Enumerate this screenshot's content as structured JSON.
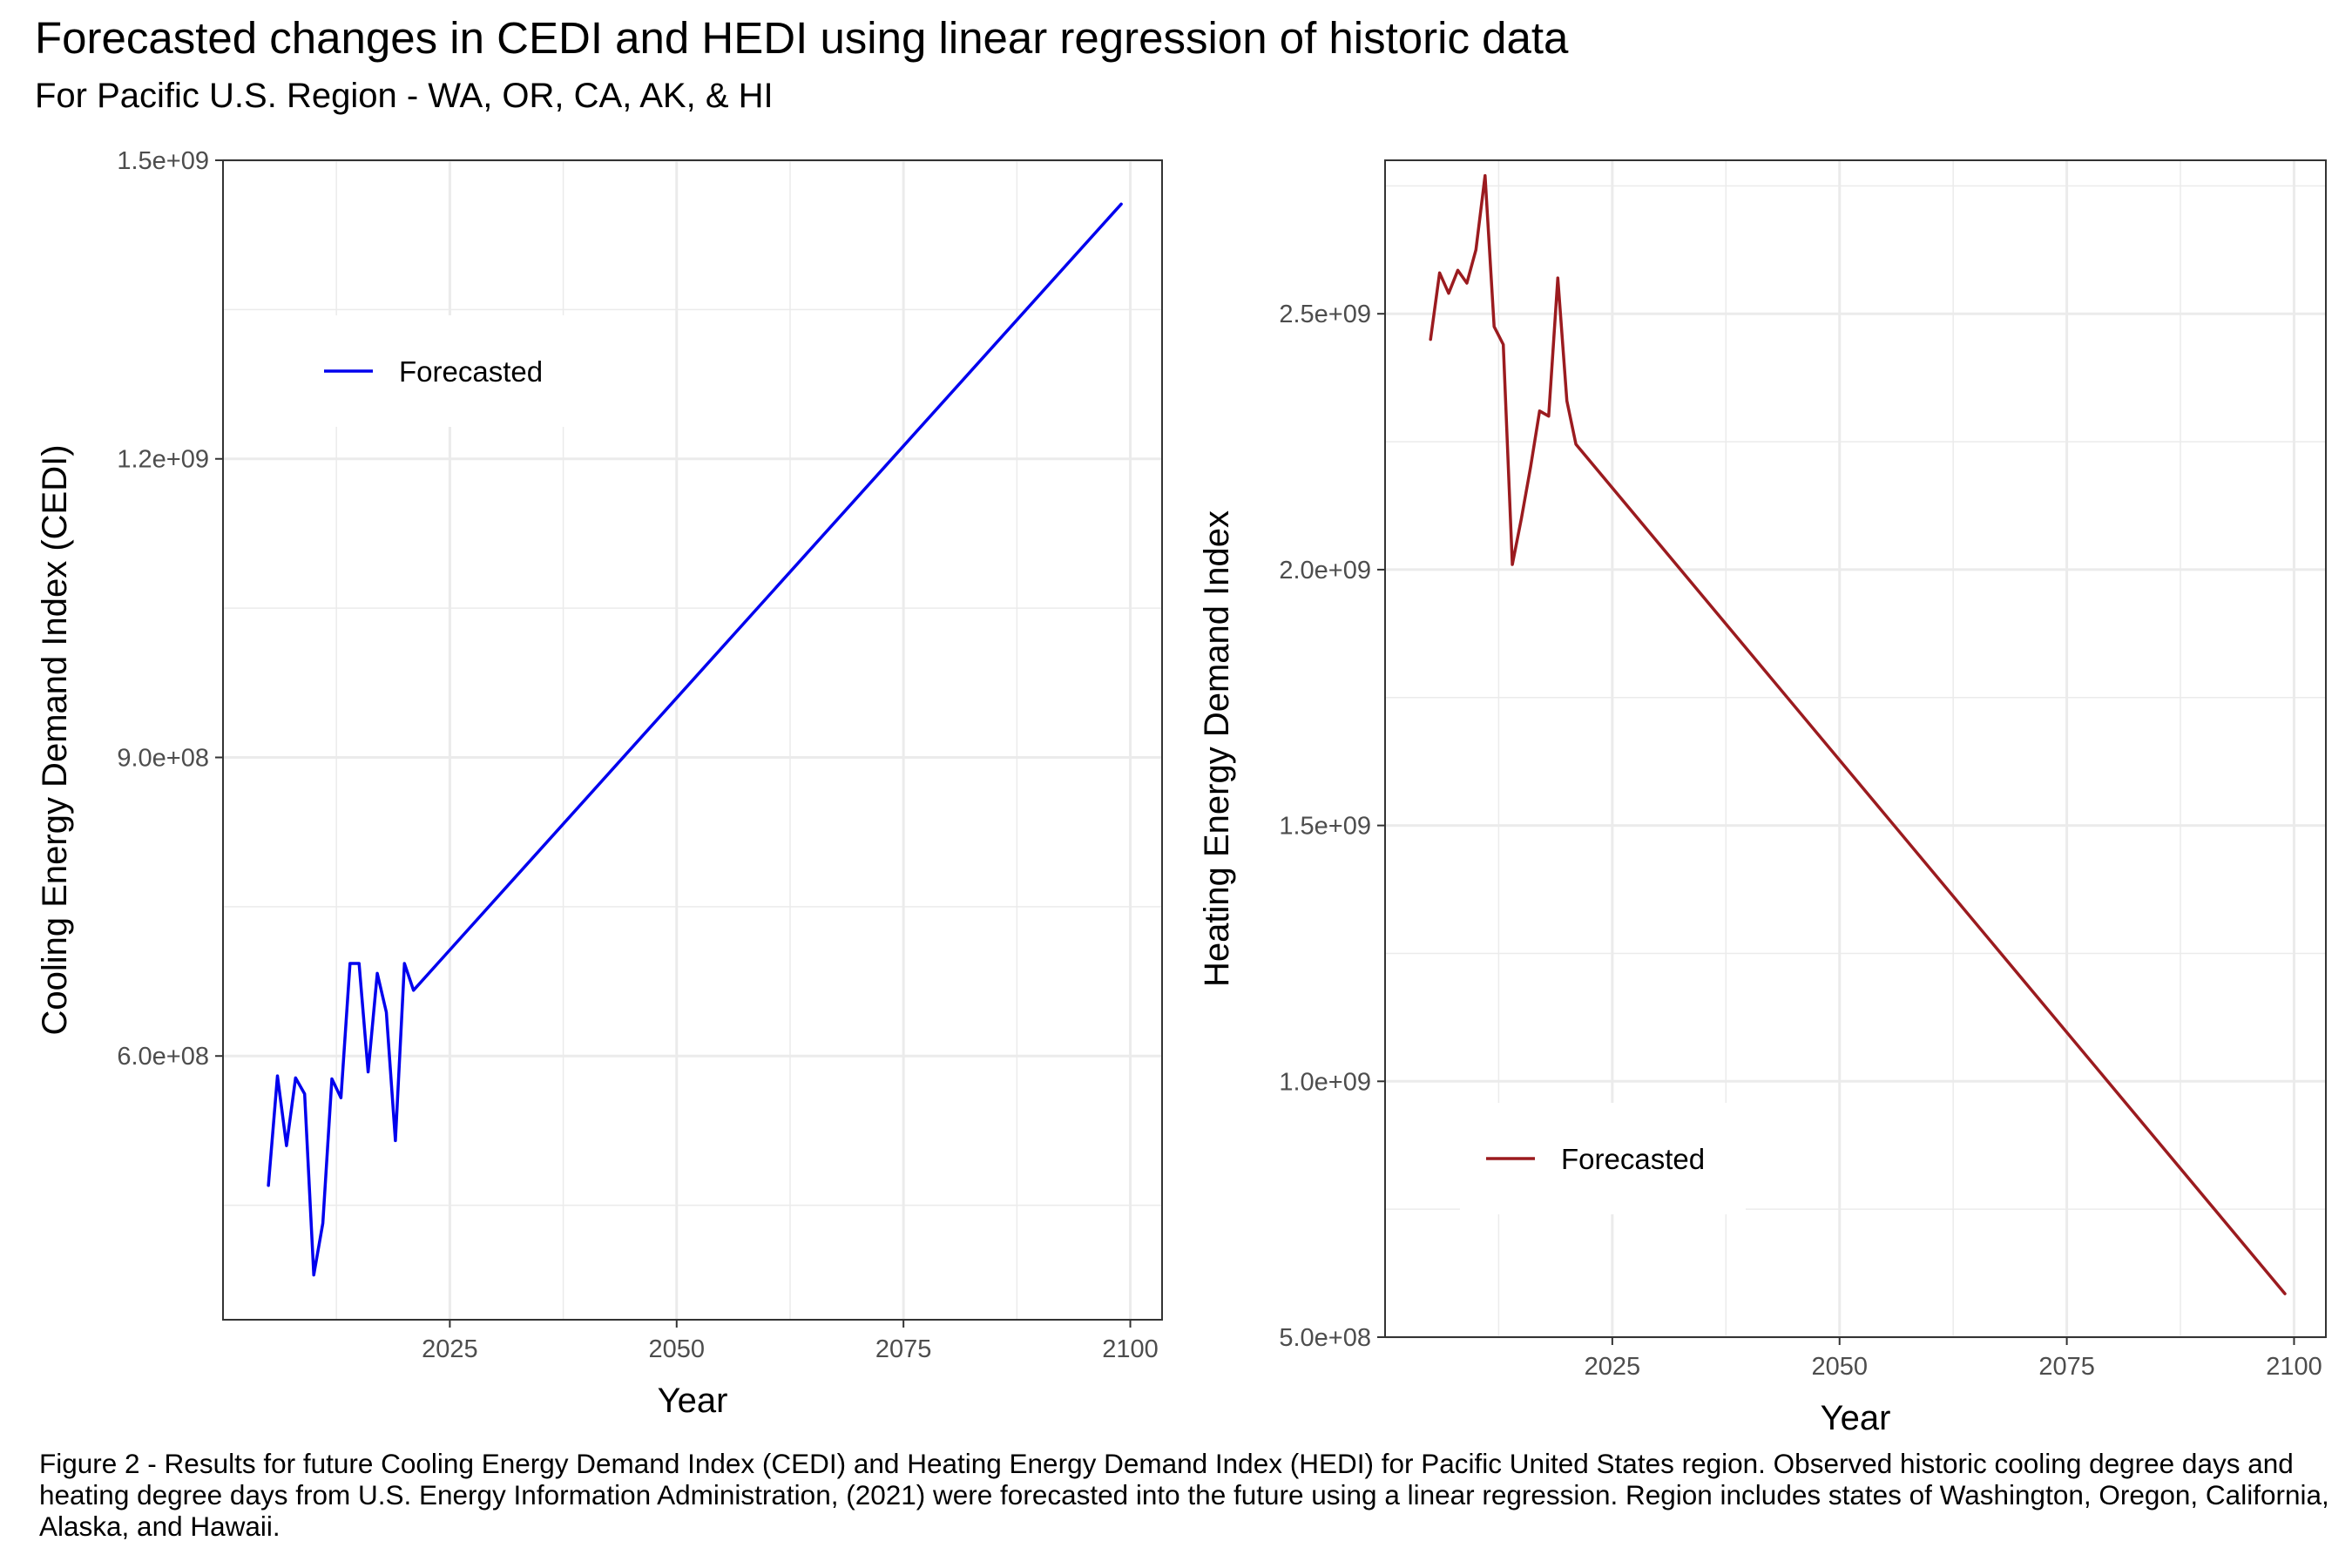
{
  "figure": {
    "title": "Forecasted changes in CEDI and HEDI using linear regression of historic data",
    "subtitle": "For Pacific U.S. Region - WA, OR, CA, AK, & HI",
    "caption": "Figure 2 - Results for future Cooling Energy Demand Index (CEDI) and Heating Energy Demand Index (HEDI) for Pacific United States region. Observed historic cooling degree days and heating degree days from U.S. Energy Information Administration, (2021) were forecasted into the future using a linear regression. Region includes states of Washington, Oregon, California, Alaska, and Hawaii."
  },
  "chart_data": [
    {
      "type": "line",
      "xlabel": "Year",
      "ylabel": "Cooling Energy Demand Index (CEDI)",
      "xlim": [
        2000,
        2103.5
      ],
      "ylim": [
        335000000,
        1500000000
      ],
      "x_ticks": [
        2025,
        2050,
        2075,
        2100
      ],
      "x_tick_labels": [
        "2025",
        "2050",
        "2075",
        "2100"
      ],
      "y_ticks": [
        600000000,
        900000000,
        1200000000,
        1500000000
      ],
      "y_tick_labels": [
        "6.0e+08",
        "9.0e+08",
        "1.2e+09",
        "1.5e+09"
      ],
      "grid": true,
      "legend": {
        "position": "top-left",
        "entries": [
          "Forecasted"
        ]
      },
      "series": [
        {
          "name": "Forecasted",
          "color": "#0000ee",
          "x": [
            2005,
            2006,
            2007,
            2008,
            2009,
            2010,
            2011,
            2012,
            2013,
            2014,
            2015,
            2016,
            2017,
            2018,
            2019,
            2020,
            2021,
            2099
          ],
          "y": [
            470000000,
            580000000,
            510000000,
            578000000,
            562000000,
            380000000,
            432000000,
            577000000,
            558000000,
            693000000,
            693000000,
            584000000,
            683000000,
            644000000,
            515000000,
            693000000,
            666000000,
            1456000000
          ]
        }
      ]
    },
    {
      "type": "line",
      "xlabel": "Year",
      "ylabel": "Heating Energy Demand Index",
      "xlim": [
        2000,
        2103.5
      ],
      "ylim": [
        500000000,
        2800000000
      ],
      "x_ticks": [
        2025,
        2050,
        2075,
        2100
      ],
      "x_tick_labels": [
        "2025",
        "2050",
        "2075",
        "2100"
      ],
      "y_ticks": [
        500000000,
        1000000000,
        1500000000,
        2000000000,
        2500000000
      ],
      "y_tick_labels": [
        "5.0e+08",
        "1.0e+09",
        "1.5e+09",
        "2.0e+09",
        "2.5e+09"
      ],
      "grid": true,
      "legend": {
        "position": "bottom-left",
        "entries": [
          "Forecasted"
        ]
      },
      "series": [
        {
          "name": "Forecasted",
          "color": "#9b1b1f",
          "x": [
            2005,
            2006,
            2007,
            2008,
            2009,
            2010,
            2011,
            2012,
            2013,
            2014,
            2015,
            2016,
            2017,
            2018,
            2019,
            2020,
            2021,
            2099
          ],
          "y": [
            2450000000,
            2580000000,
            2540000000,
            2585000000,
            2560000000,
            2625000000,
            2770000000,
            2475000000,
            2440000000,
            2010000000,
            2100000000,
            2200000000,
            2310000000,
            2300000000,
            2570000000,
            2330000000,
            2245000000,
            585000000
          ]
        }
      ]
    }
  ]
}
